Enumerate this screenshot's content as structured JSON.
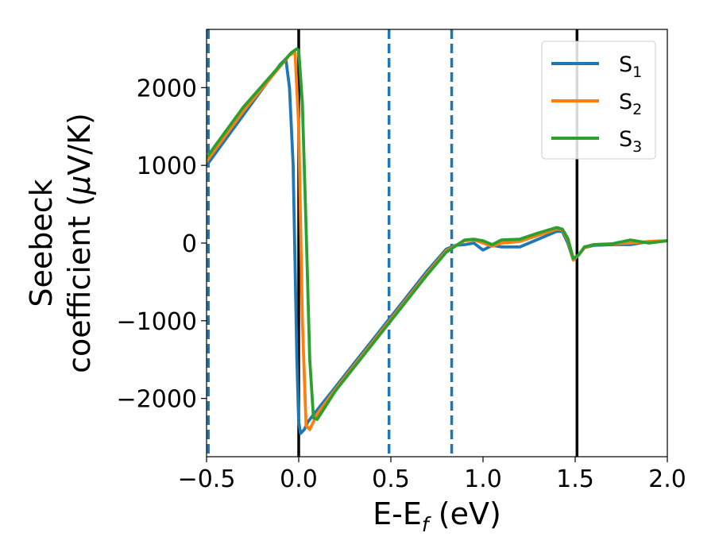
{
  "chart_data": {
    "type": "line",
    "xlabel": {
      "main": "E-E",
      "sub": "f",
      "unit": " (eV)"
    },
    "ylabel": {
      "line1": "Seebeck",
      "line2": "coefficient  (",
      "mu": "μ",
      "line2_end": "V/K)"
    },
    "xlim": [
      -0.5,
      2.0
    ],
    "ylim": [
      -2750,
      2750
    ],
    "x_ticks": [
      -0.5,
      0.0,
      0.5,
      1.0,
      1.5,
      2.0
    ],
    "x_tick_labels": [
      "−0.5",
      "0.0",
      "0.5",
      "1.0",
      "1.5",
      "2.0"
    ],
    "y_ticks": [
      2000,
      1000,
      0,
      -1000,
      -2000
    ],
    "y_tick_labels": [
      "2000",
      "1000",
      "0",
      "−1000",
      "−2000"
    ],
    "grid": false,
    "legend_position": "top-right",
    "vlines": [
      {
        "x": -0.49,
        "style": "dashed",
        "color": "#1f77b4"
      },
      {
        "x": 0.0,
        "style": "solid",
        "color": "#000000"
      },
      {
        "x": 0.49,
        "style": "dashed",
        "color": "#1f77b4"
      },
      {
        "x": 0.83,
        "style": "dashed",
        "color": "#1f77b4"
      },
      {
        "x": 1.51,
        "style": "solid",
        "color": "#000000"
      }
    ],
    "series": [
      {
        "name": "S",
        "sub": "1",
        "color": "#1f77b4",
        "x": [
          -0.5,
          -0.3,
          -0.1,
          -0.07,
          -0.05,
          -0.03,
          -0.01,
          0.0,
          0.01,
          0.03,
          0.05,
          0.1,
          0.2,
          0.3,
          0.4,
          0.5,
          0.6,
          0.7,
          0.8,
          0.85,
          0.9,
          0.95,
          1.0,
          1.05,
          1.1,
          1.2,
          1.3,
          1.4,
          1.43,
          1.46,
          1.49,
          1.52,
          1.55,
          1.6,
          1.7,
          1.8,
          1.9,
          2.0
        ],
        "y": [
          1000,
          1650,
          2300,
          2370,
          2000,
          1000,
          -1500,
          -2300,
          -2450,
          -2400,
          -2300,
          -2150,
          -1850,
          -1550,
          -1250,
          -950,
          -650,
          -350,
          -80,
          -30,
          -20,
          0,
          -90,
          -30,
          -50,
          -50,
          50,
          150,
          150,
          0,
          -220,
          -150,
          -60,
          -30,
          -20,
          -20,
          20,
          30
        ]
      },
      {
        "name": "S",
        "sub": "2",
        "color": "#ff7f0e",
        "x": [
          -0.5,
          -0.3,
          -0.05,
          -0.02,
          0.0,
          0.02,
          0.04,
          0.06,
          0.1,
          0.2,
          0.3,
          0.4,
          0.5,
          0.6,
          0.7,
          0.8,
          0.9,
          0.95,
          1.0,
          1.05,
          1.1,
          1.2,
          1.3,
          1.4,
          1.43,
          1.46,
          1.49,
          1.52,
          1.55,
          1.6,
          1.7,
          1.8,
          1.9,
          2.0
        ],
        "y": [
          1050,
          1700,
          2420,
          2450,
          1500,
          -1000,
          -2350,
          -2400,
          -2200,
          -1880,
          -1580,
          -1280,
          -980,
          -680,
          -380,
          -100,
          30,
          40,
          0,
          -40,
          0,
          20,
          100,
          180,
          170,
          40,
          -220,
          -150,
          -60,
          -20,
          -10,
          0,
          20,
          30
        ]
      },
      {
        "name": "S",
        "sub": "3",
        "color": "#2ca02c",
        "x": [
          -0.5,
          -0.3,
          -0.04,
          -0.01,
          0.0,
          0.02,
          0.04,
          0.06,
          0.08,
          0.1,
          0.2,
          0.3,
          0.4,
          0.5,
          0.6,
          0.7,
          0.8,
          0.9,
          0.95,
          1.0,
          1.05,
          1.1,
          1.2,
          1.3,
          1.4,
          1.43,
          1.46,
          1.49,
          1.52,
          1.55,
          1.6,
          1.7,
          1.8,
          1.9,
          2.0
        ],
        "y": [
          1100,
          1750,
          2450,
          2500,
          2480,
          1800,
          200,
          -1500,
          -2250,
          -2270,
          -1900,
          -1600,
          -1300,
          -1000,
          -700,
          -400,
          -120,
          40,
          50,
          30,
          -20,
          40,
          50,
          130,
          200,
          180,
          60,
          -200,
          -150,
          -50,
          -20,
          -10,
          40,
          0,
          30
        ]
      }
    ]
  }
}
